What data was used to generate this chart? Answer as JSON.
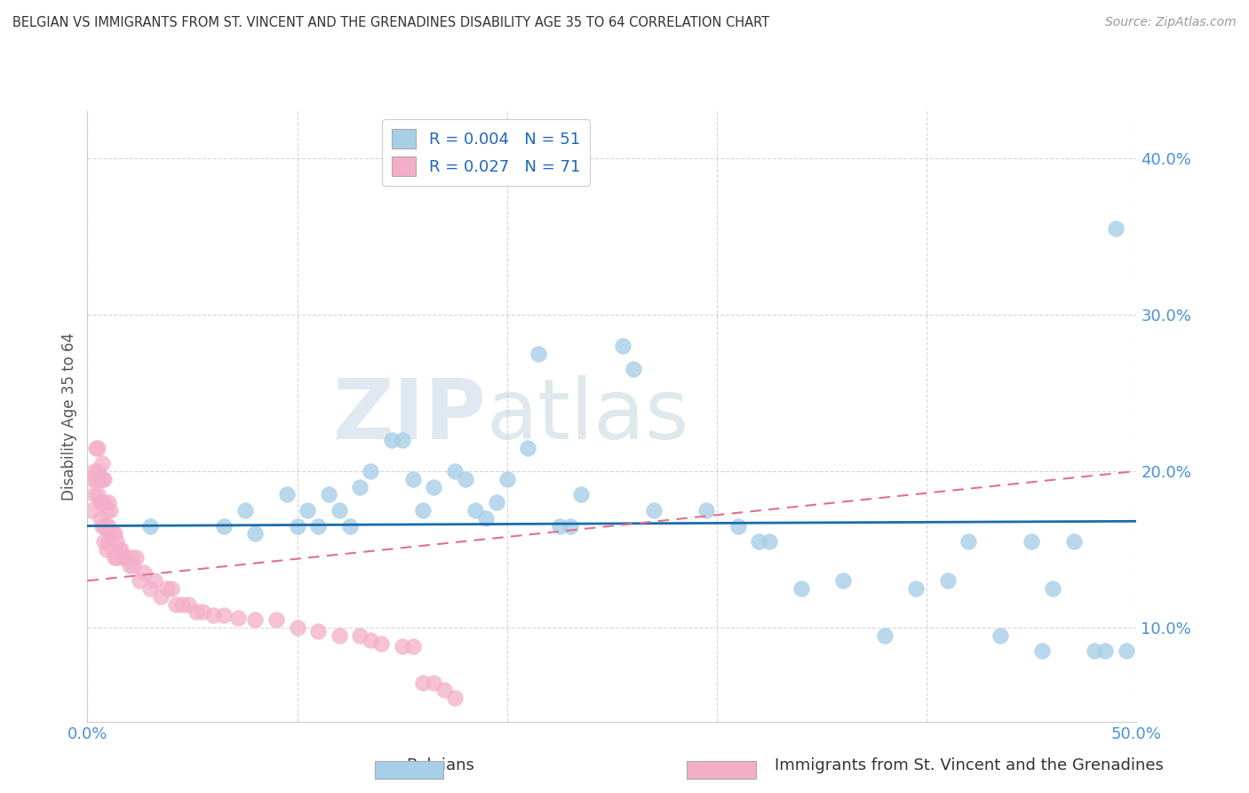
{
  "title": "BELGIAN VS IMMIGRANTS FROM ST. VINCENT AND THE GRENADINES DISABILITY AGE 35 TO 64 CORRELATION CHART",
  "source": "Source: ZipAtlas.com",
  "ylabel": "Disability Age 35 to 64",
  "xlim": [
    0.0,
    0.5
  ],
  "ylim": [
    0.04,
    0.43
  ],
  "yticks": [
    0.1,
    0.2,
    0.3,
    0.4
  ],
  "ytick_labels": [
    "10.0%",
    "20.0%",
    "30.0%",
    "40.0%"
  ],
  "xticks": [
    0.0,
    0.1,
    0.2,
    0.3,
    0.4,
    0.5
  ],
  "xtick_labels": [
    "0.0%",
    "",
    "",
    "",
    "",
    "50.0%"
  ],
  "belgian_R": "0.004",
  "belgian_N": "51",
  "immigrant_R": "0.027",
  "immigrant_N": "71",
  "belgian_color": "#a8cfe8",
  "immigrant_color": "#f4afc8",
  "belgian_line_color": "#1a6daa",
  "immigrant_line_color": "#e07090",
  "background_color": "#ffffff",
  "grid_color": "#cccccc",
  "watermark_zip": "ZIP",
  "watermark_atlas": "atlas",
  "legend_labels": [
    "Belgians",
    "Immigrants from St. Vincent and the Grenadines"
  ],
  "belgians_x": [
    0.03,
    0.065,
    0.075,
    0.08,
    0.095,
    0.1,
    0.105,
    0.11,
    0.115,
    0.12,
    0.125,
    0.13,
    0.135,
    0.145,
    0.15,
    0.155,
    0.16,
    0.165,
    0.175,
    0.18,
    0.185,
    0.19,
    0.195,
    0.2,
    0.21,
    0.215,
    0.225,
    0.23,
    0.235,
    0.255,
    0.26,
    0.27,
    0.295,
    0.31,
    0.32,
    0.325,
    0.34,
    0.36,
    0.38,
    0.395,
    0.41,
    0.42,
    0.435,
    0.45,
    0.455,
    0.46,
    0.47,
    0.48,
    0.485,
    0.49,
    0.495
  ],
  "belgians_y": [
    0.165,
    0.165,
    0.175,
    0.16,
    0.185,
    0.165,
    0.175,
    0.165,
    0.185,
    0.175,
    0.165,
    0.19,
    0.2,
    0.22,
    0.22,
    0.195,
    0.175,
    0.19,
    0.2,
    0.195,
    0.175,
    0.17,
    0.18,
    0.195,
    0.215,
    0.275,
    0.165,
    0.165,
    0.185,
    0.28,
    0.265,
    0.175,
    0.175,
    0.165,
    0.155,
    0.155,
    0.125,
    0.13,
    0.095,
    0.125,
    0.13,
    0.155,
    0.095,
    0.155,
    0.085,
    0.125,
    0.155,
    0.085,
    0.085,
    0.355,
    0.085
  ],
  "immigrants_x": [
    0.002,
    0.002,
    0.003,
    0.003,
    0.004,
    0.004,
    0.005,
    0.005,
    0.005,
    0.006,
    0.006,
    0.006,
    0.007,
    0.007,
    0.007,
    0.007,
    0.008,
    0.008,
    0.008,
    0.008,
    0.009,
    0.009,
    0.009,
    0.01,
    0.01,
    0.01,
    0.011,
    0.011,
    0.012,
    0.012,
    0.013,
    0.013,
    0.014,
    0.014,
    0.015,
    0.016,
    0.017,
    0.018,
    0.02,
    0.021,
    0.022,
    0.023,
    0.025,
    0.027,
    0.03,
    0.032,
    0.035,
    0.038,
    0.04,
    0.042,
    0.045,
    0.048,
    0.052,
    0.055,
    0.06,
    0.065,
    0.072,
    0.08,
    0.09,
    0.1,
    0.11,
    0.12,
    0.13,
    0.135,
    0.14,
    0.15,
    0.155,
    0.16,
    0.165,
    0.17,
    0.175
  ],
  "immigrants_y": [
    0.195,
    0.175,
    0.2,
    0.185,
    0.215,
    0.195,
    0.215,
    0.2,
    0.185,
    0.195,
    0.18,
    0.17,
    0.205,
    0.195,
    0.18,
    0.165,
    0.195,
    0.18,
    0.165,
    0.155,
    0.175,
    0.165,
    0.15,
    0.18,
    0.165,
    0.155,
    0.175,
    0.16,
    0.16,
    0.15,
    0.16,
    0.145,
    0.155,
    0.145,
    0.15,
    0.15,
    0.145,
    0.145,
    0.14,
    0.145,
    0.14,
    0.145,
    0.13,
    0.135,
    0.125,
    0.13,
    0.12,
    0.125,
    0.125,
    0.115,
    0.115,
    0.115,
    0.11,
    0.11,
    0.108,
    0.108,
    0.106,
    0.105,
    0.105,
    0.1,
    0.098,
    0.095,
    0.095,
    0.092,
    0.09,
    0.088,
    0.088,
    0.065,
    0.065,
    0.06,
    0.055
  ],
  "belgian_trend_x": [
    0.0,
    0.5
  ],
  "belgian_trend_y": [
    0.165,
    0.168
  ],
  "immigrant_trend_x": [
    0.0,
    0.5
  ],
  "immigrant_trend_y": [
    0.13,
    0.2
  ]
}
